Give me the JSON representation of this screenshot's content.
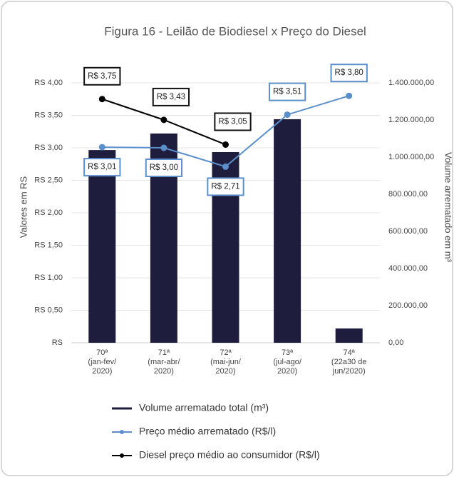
{
  "chart_data": {
    "type": "combo",
    "title": "Figura 16 - Leilão de Biodiesel x Preço do Diesel",
    "y_label": "Valores em RS",
    "y2_label": "Volume arrematado em m³",
    "categories": [
      "70ª\n(jan-fev/\n2020)",
      "71ª\n(mar-abr/\n2020)",
      "72ª\n(mai-jun/\n2020)",
      "73ª\n(jul-ago/\n2020)",
      "74ª\n(22a30 de\njun/2020)"
    ],
    "series": [
      {
        "name": "Volume arrematado total (m³)",
        "type": "bar",
        "axis": "y2",
        "color": "#1f1d3d",
        "values": [
          1038000,
          1127000,
          1027000,
          1204000,
          77000
        ]
      },
      {
        "name": "Preço médio arrematado (R$/l)",
        "type": "line",
        "color": "#5b8fcc",
        "values": [
          3.01,
          3.0,
          2.71,
          3.51,
          3.8
        ],
        "value_labels": [
          "R$ 3,01",
          "R$ 3,00",
          "R$ 2,71",
          "R$ 3,51",
          "R$ 3,80"
        ]
      },
      {
        "name": "Diesel preço médio ao consumidor (R$/l)",
        "type": "line",
        "color": "#000000",
        "values": [
          3.75,
          3.43,
          3.05,
          null,
          null
        ],
        "value_labels": [
          "R$ 3,75",
          "R$ 3,43",
          "R$ 3,05",
          null,
          null
        ]
      }
    ],
    "ylim": [
      0,
      4.5
    ],
    "yticks": [
      {
        "value": 0,
        "label": "RS"
      },
      {
        "value": 0.5,
        "label": "RS 0,50"
      },
      {
        "value": 1,
        "label": "RS 1,00"
      },
      {
        "value": 1.5,
        "label": "RS 1,50"
      },
      {
        "value": 2,
        "label": "RS 2,00"
      },
      {
        "value": 2.5,
        "label": "RS 2,50"
      },
      {
        "value": 3,
        "label": "RS 3,00"
      },
      {
        "value": 3.5,
        "label": "RS 3,50"
      },
      {
        "value": 4,
        "label": "RS 4,00"
      }
    ],
    "y2lim": [
      0,
      1575000
    ],
    "y2ticks": [
      {
        "value": 0,
        "label": "0,00"
      },
      {
        "value": 200000,
        "label": "200.000,00"
      },
      {
        "value": 400000,
        "label": "400.000,00"
      },
      {
        "value": 600000,
        "label": "600.000,00"
      },
      {
        "value": 800000,
        "label": "800.000,00"
      },
      {
        "value": 1000000,
        "label": "1.000.000,00"
      },
      {
        "value": 1200000,
        "label": "1.200.000,00"
      },
      {
        "value": 1400000,
        "label": "1.400.000,00"
      }
    ],
    "grid": true
  }
}
